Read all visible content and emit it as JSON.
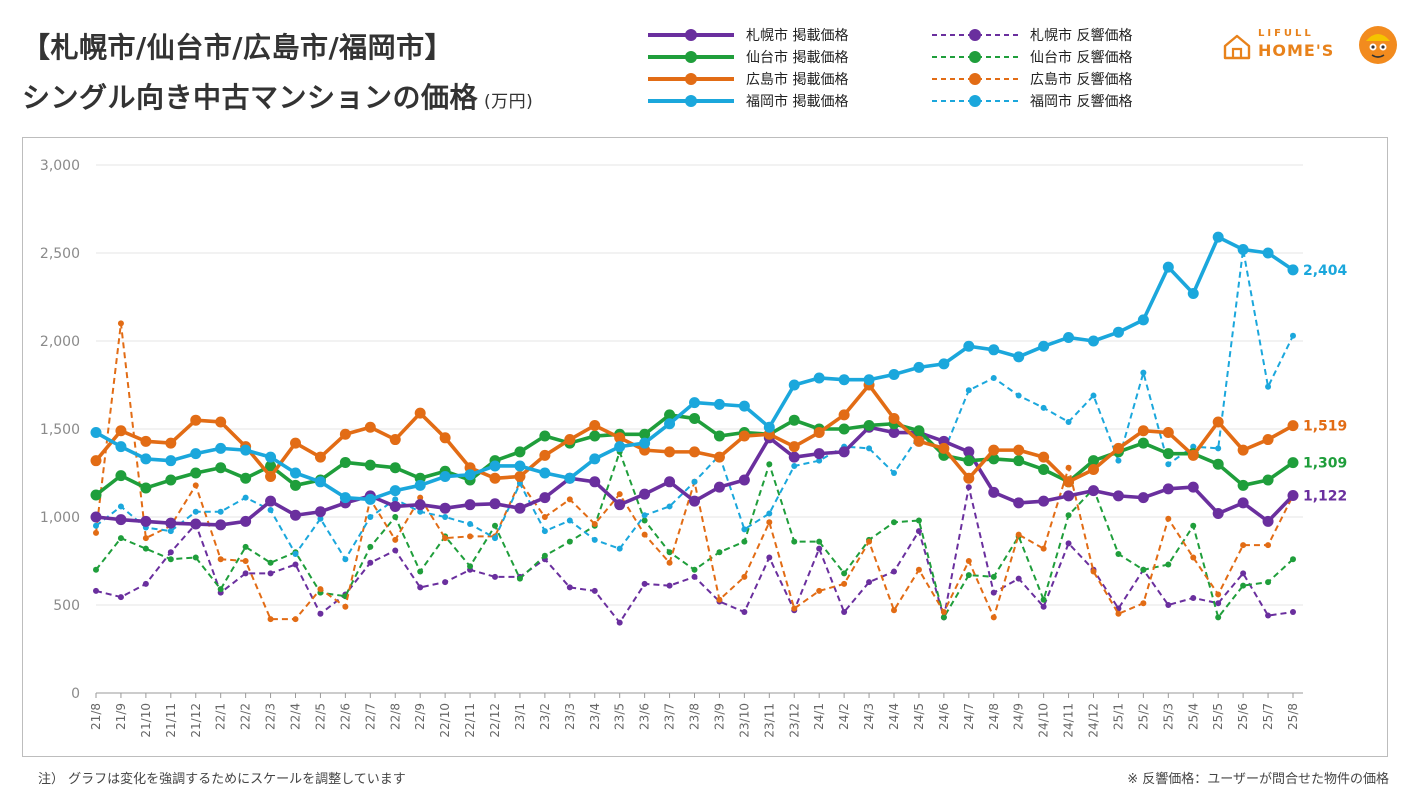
{
  "title_line1": "【札幌市/仙台市/広島市/福岡市】",
  "title_line2": "シングル向き中古マンションの価格",
  "title_unit": "(万円)",
  "logo": {
    "top": "LIFULL",
    "bottom": "HOME'S"
  },
  "note_left": "注） グラフは変化を強調するためにスケールを調整しています",
  "note_right": "※ 反響価格：ユーザーが問合せた物件の価格",
  "colors": {
    "sapporo": "#6a2f9e",
    "sendai": "#1f9e3b",
    "hiroshima": "#e26c15",
    "fukuoka": "#1ba7dc"
  },
  "chart_data": {
    "type": "line",
    "title": "【札幌市/仙台市/広島市/福岡市】 シングル向き中古マンションの価格 (万円)",
    "ylim": [
      0,
      3000
    ],
    "yticks": [
      "0",
      "500",
      "1,000",
      "1,500",
      "2,000",
      "2,500",
      "3,000"
    ],
    "ytick_values": [
      0,
      500,
      1000,
      1500,
      2000,
      2500,
      3000
    ],
    "grid": true,
    "legend_position": "top",
    "x": [
      "21/8",
      "21/9",
      "21/10",
      "21/11",
      "21/12",
      "22/1",
      "22/2",
      "22/3",
      "22/4",
      "22/5",
      "22/6",
      "22/7",
      "22/8",
      "22/9",
      "22/10",
      "22/11",
      "22/12",
      "23/1",
      "23/2",
      "23/3",
      "23/4",
      "23/5",
      "23/6",
      "23/7",
      "23/8",
      "23/9",
      "23/10",
      "23/11",
      "23/12",
      "24/1",
      "24/2",
      "24/3",
      "24/4",
      "24/5",
      "24/6",
      "24/7",
      "24/8",
      "24/9",
      "24/10",
      "24/11",
      "24/12",
      "25/1",
      "25/2",
      "25/3",
      "25/4",
      "25/5",
      "25/6",
      "25/7",
      "25/8"
    ],
    "series": [
      {
        "name": "札幌市 掲載価格",
        "color": "#6a2f9e",
        "dashed": false,
        "values": [
          1000,
          985,
          975,
          965,
          960,
          955,
          975,
          1090,
          1010,
          1030,
          1080,
          1120,
          1060,
          1070,
          1050,
          1070,
          1075,
          1050,
          1110,
          1220,
          1200,
          1070,
          1130,
          1200,
          1090,
          1170,
          1210,
          1450,
          1340,
          1360,
          1370,
          1510,
          1480,
          1480,
          1430,
          1370,
          1140,
          1080,
          1090,
          1120,
          1150,
          1120,
          1110,
          1160,
          1170,
          1020,
          1080,
          975,
          1122
        ],
        "end_label": "1,122"
      },
      {
        "name": "仙台市 掲載価格",
        "color": "#1f9e3b",
        "dashed": false,
        "values": [
          1125,
          1235,
          1165,
          1210,
          1250,
          1280,
          1220,
          1290,
          1180,
          1210,
          1310,
          1295,
          1280,
          1220,
          1260,
          1210,
          1320,
          1370,
          1460,
          1420,
          1460,
          1470,
          1470,
          1580,
          1560,
          1460,
          1480,
          1470,
          1550,
          1500,
          1500,
          1520,
          1530,
          1490,
          1350,
          1320,
          1330,
          1320,
          1270,
          1200,
          1320,
          1370,
          1420,
          1360,
          1360,
          1300,
          1180,
          1210,
          1309
        ],
        "end_label": "1,309"
      },
      {
        "name": "広島市 掲載価格",
        "color": "#e26c15",
        "dashed": false,
        "values": [
          1320,
          1490,
          1430,
          1420,
          1550,
          1540,
          1400,
          1230,
          1420,
          1340,
          1470,
          1510,
          1440,
          1590,
          1450,
          1280,
          1220,
          1230,
          1350,
          1440,
          1520,
          1450,
          1380,
          1370,
          1370,
          1340,
          1460,
          1470,
          1400,
          1480,
          1580,
          1750,
          1560,
          1430,
          1390,
          1220,
          1380,
          1380,
          1340,
          1200,
          1270,
          1390,
          1490,
          1480,
          1350,
          1540,
          1380,
          1440,
          1519
        ],
        "end_label": "1,519"
      },
      {
        "name": "福岡市 掲載価格",
        "color": "#1ba7dc",
        "dashed": false,
        "values": [
          1480,
          1400,
          1330,
          1320,
          1360,
          1390,
          1380,
          1340,
          1250,
          1200,
          1110,
          1100,
          1150,
          1180,
          1230,
          1240,
          1290,
          1290,
          1250,
          1220,
          1330,
          1400,
          1420,
          1530,
          1650,
          1640,
          1630,
          1510,
          1750,
          1790,
          1780,
          1780,
          1810,
          1850,
          1870,
          1970,
          1950,
          1910,
          1970,
          2020,
          2000,
          2050,
          2120,
          2420,
          2270,
          2590,
          2520,
          2500,
          2404
        ],
        "end_label": "2,404"
      },
      {
        "name": "札幌市 反響価格",
        "color": "#6a2f9e",
        "dashed": true,
        "values": [
          580,
          545,
          620,
          800,
          960,
          570,
          680,
          680,
          730,
          450,
          560,
          740,
          810,
          600,
          630,
          700,
          660,
          660,
          760,
          600,
          580,
          400,
          620,
          610,
          660,
          520,
          460,
          770,
          470,
          820,
          460,
          630,
          690,
          920,
          430,
          1170,
          570,
          650,
          490,
          850,
          700,
          480,
          700,
          500,
          540,
          510,
          680,
          440,
          460
        ]
      },
      {
        "name": "仙台市 反響価格",
        "color": "#1f9e3b",
        "dashed": true,
        "values": [
          700,
          880,
          820,
          760,
          770,
          590,
          830,
          740,
          800,
          570,
          550,
          830,
          1000,
          690,
          890,
          720,
          950,
          650,
          780,
          860,
          950,
          1370,
          980,
          800,
          700,
          800,
          860,
          1300,
          860,
          860,
          680,
          870,
          970,
          980,
          430,
          670,
          660,
          890,
          530,
          1010,
          1160,
          790,
          700,
          730,
          950,
          430,
          610,
          630,
          760
        ]
      },
      {
        "name": "広島市 反響価格",
        "color": "#e26c15",
        "dashed": true,
        "values": [
          910,
          2100,
          880,
          950,
          1180,
          760,
          750,
          420,
          420,
          590,
          490,
          1100,
          870,
          1110,
          880,
          890,
          890,
          1200,
          1000,
          1100,
          960,
          1130,
          900,
          740,
          1200,
          530,
          660,
          970,
          480,
          580,
          620,
          860,
          470,
          700,
          460,
          750,
          430,
          900,
          820,
          1280,
          690,
          450,
          510,
          990,
          770,
          560,
          840,
          840,
          1122
        ]
      },
      {
        "name": "福岡市 反響価格",
        "color": "#1ba7dc",
        "dashed": true,
        "values": [
          950,
          1060,
          940,
          920,
          1030,
          1030,
          1110,
          1040,
          790,
          990,
          760,
          1000,
          1100,
          1030,
          1000,
          960,
          880,
          1190,
          920,
          980,
          870,
          820,
          1010,
          1060,
          1200,
          1350,
          930,
          1020,
          1290,
          1320,
          1400,
          1390,
          1250,
          1460,
          1370,
          1720,
          1790,
          1690,
          1620,
          1540,
          1690,
          1320,
          1820,
          1300,
          1400,
          1390,
          2520,
          1740,
          2030
        ]
      }
    ]
  }
}
